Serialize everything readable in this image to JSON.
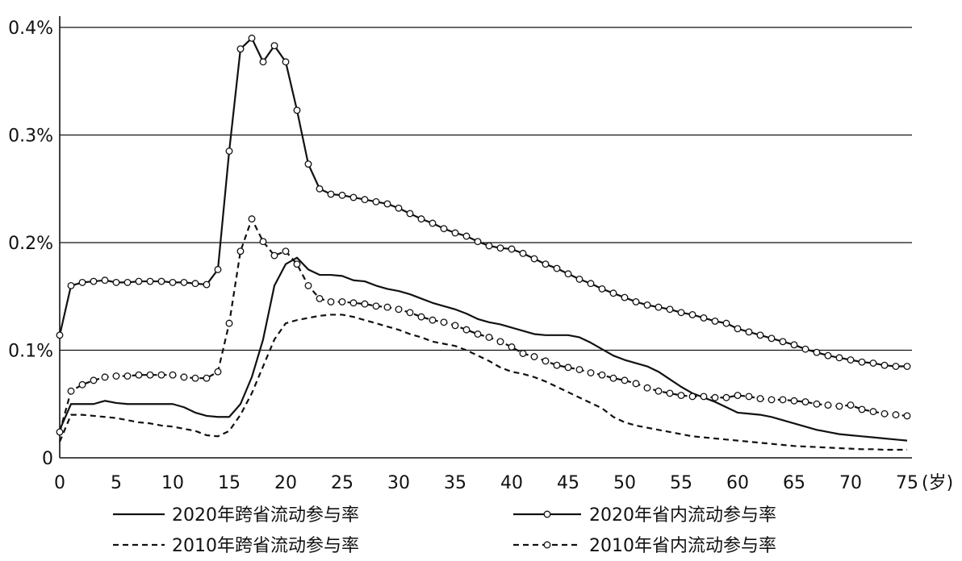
{
  "chart_data": {
    "type": "line",
    "xlabel": "",
    "ylabel": "",
    "x_unit": "(岁)",
    "xlim": [
      0,
      75
    ],
    "ylim": [
      0,
      0.4
    ],
    "x_ticks": [
      0,
      5,
      10,
      15,
      20,
      25,
      30,
      35,
      40,
      45,
      50,
      55,
      60,
      65,
      70,
      75
    ],
    "x_tick_labels": [
      "0",
      "5",
      "10",
      "15",
      "20",
      "25",
      "30",
      "35",
      "40",
      "45",
      "50",
      "55",
      "60",
      "65",
      "70",
      "75"
    ],
    "y_ticks": [
      0,
      0.1,
      0.2,
      0.3,
      0.4
    ],
    "y_tick_labels": [
      "0",
      "0.1%",
      "0.2%",
      "0.3%",
      "0.4%"
    ],
    "grid": "horizontal",
    "legend_position": "bottom",
    "x": [
      0,
      1,
      2,
      3,
      4,
      5,
      6,
      7,
      8,
      9,
      10,
      11,
      12,
      13,
      14,
      15,
      16,
      17,
      18,
      19,
      20,
      21,
      22,
      23,
      24,
      25,
      26,
      27,
      28,
      29,
      30,
      31,
      32,
      33,
      34,
      35,
      36,
      37,
      38,
      39,
      40,
      41,
      42,
      43,
      44,
      45,
      46,
      47,
      48,
      49,
      50,
      51,
      52,
      53,
      54,
      55,
      56,
      57,
      58,
      59,
      60,
      61,
      62,
      63,
      64,
      65,
      66,
      67,
      68,
      69,
      70,
      71,
      72,
      73,
      74,
      75
    ],
    "series": [
      {
        "name": "2020年跨省流动参与率",
        "style": "solid",
        "marker": "none",
        "values": [
          0.026,
          0.05,
          0.05,
          0.05,
          0.053,
          0.051,
          0.05,
          0.05,
          0.05,
          0.05,
          0.05,
          0.047,
          0.042,
          0.039,
          0.038,
          0.038,
          0.05,
          0.075,
          0.11,
          0.16,
          0.18,
          0.186,
          0.175,
          0.17,
          0.17,
          0.169,
          0.165,
          0.164,
          0.16,
          0.157,
          0.155,
          0.152,
          0.148,
          0.144,
          0.141,
          0.138,
          0.134,
          0.129,
          0.126,
          0.124,
          0.121,
          0.118,
          0.115,
          0.114,
          0.114,
          0.114,
          0.112,
          0.107,
          0.101,
          0.095,
          0.091,
          0.088,
          0.085,
          0.08,
          0.073,
          0.066,
          0.06,
          0.056,
          0.052,
          0.047,
          0.042,
          0.041,
          0.04,
          0.038,
          0.035,
          0.032,
          0.029,
          0.026,
          0.024,
          0.022,
          0.021,
          0.02,
          0.019,
          0.018,
          0.017,
          0.016
        ]
      },
      {
        "name": "2020年省内流动参与率",
        "style": "solid",
        "marker": "circle",
        "values": [
          0.114,
          0.16,
          0.163,
          0.164,
          0.165,
          0.163,
          0.163,
          0.164,
          0.164,
          0.164,
          0.163,
          0.163,
          0.162,
          0.161,
          0.175,
          0.285,
          0.38,
          0.39,
          0.368,
          0.383,
          0.368,
          0.323,
          0.273,
          0.25,
          0.245,
          0.244,
          0.242,
          0.24,
          0.238,
          0.236,
          0.232,
          0.227,
          0.222,
          0.218,
          0.213,
          0.209,
          0.206,
          0.201,
          0.197,
          0.195,
          0.194,
          0.19,
          0.185,
          0.18,
          0.176,
          0.171,
          0.166,
          0.162,
          0.157,
          0.153,
          0.149,
          0.145,
          0.142,
          0.14,
          0.138,
          0.135,
          0.133,
          0.13,
          0.127,
          0.125,
          0.12,
          0.117,
          0.114,
          0.111,
          0.108,
          0.105,
          0.101,
          0.098,
          0.095,
          0.093,
          0.091,
          0.089,
          0.088,
          0.086,
          0.085,
          0.085
        ]
      },
      {
        "name": "2010年跨省流动参与率",
        "style": "dashed",
        "marker": "none",
        "values": [
          0.015,
          0.04,
          0.04,
          0.039,
          0.038,
          0.037,
          0.035,
          0.033,
          0.032,
          0.03,
          0.029,
          0.027,
          0.025,
          0.021,
          0.02,
          0.025,
          0.04,
          0.06,
          0.085,
          0.11,
          0.125,
          0.128,
          0.13,
          0.132,
          0.133,
          0.133,
          0.131,
          0.128,
          0.125,
          0.122,
          0.119,
          0.115,
          0.112,
          0.108,
          0.106,
          0.104,
          0.1,
          0.095,
          0.09,
          0.084,
          0.08,
          0.078,
          0.075,
          0.071,
          0.066,
          0.061,
          0.056,
          0.051,
          0.046,
          0.038,
          0.033,
          0.03,
          0.028,
          0.026,
          0.024,
          0.022,
          0.02,
          0.019,
          0.018,
          0.017,
          0.016,
          0.015,
          0.014,
          0.013,
          0.012,
          0.011,
          0.0105,
          0.01,
          0.0095,
          0.009,
          0.0085,
          0.008,
          0.008,
          0.0075,
          0.0075,
          0.0075
        ]
      },
      {
        "name": "2010年省内流动参与率",
        "style": "dashed",
        "marker": "circle",
        "values": [
          0.024,
          0.062,
          0.068,
          0.072,
          0.075,
          0.076,
          0.076,
          0.077,
          0.077,
          0.077,
          0.077,
          0.075,
          0.074,
          0.074,
          0.08,
          0.125,
          0.192,
          0.222,
          0.201,
          0.188,
          0.192,
          0.18,
          0.16,
          0.148,
          0.145,
          0.145,
          0.144,
          0.143,
          0.141,
          0.14,
          0.138,
          0.135,
          0.131,
          0.128,
          0.126,
          0.123,
          0.119,
          0.115,
          0.112,
          0.108,
          0.103,
          0.097,
          0.094,
          0.09,
          0.086,
          0.084,
          0.082,
          0.079,
          0.077,
          0.074,
          0.072,
          0.069,
          0.065,
          0.062,
          0.06,
          0.058,
          0.057,
          0.057,
          0.056,
          0.056,
          0.058,
          0.057,
          0.055,
          0.054,
          0.054,
          0.053,
          0.052,
          0.05,
          0.049,
          0.048,
          0.049,
          0.045,
          0.043,
          0.041,
          0.04,
          0.039
        ]
      }
    ]
  }
}
